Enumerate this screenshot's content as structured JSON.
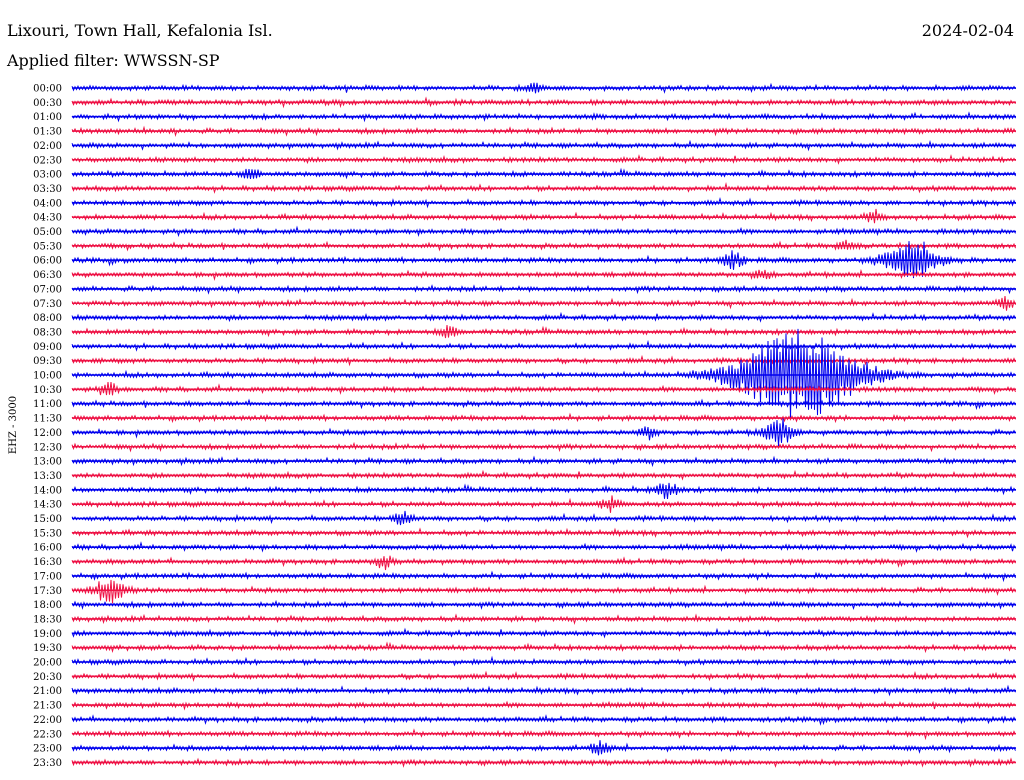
{
  "header": {
    "station": "Lixouri, Town Hall, Kefalonia Isl.",
    "date": "2024-02-04",
    "filter": "Applied filter: WWSSN-SP"
  },
  "chart_data": {
    "type": "line",
    "title": "Lixouri, Town Hall, Kefalonia Isl.",
    "subtitle": "Applied filter: WWSSN-SP",
    "ylabel": "EHZ - 3000",
    "row_labels": [
      "00:00",
      "00:30",
      "01:00",
      "01:30",
      "02:00",
      "02:30",
      "03:00",
      "03:30",
      "04:00",
      "04:30",
      "05:00",
      "05:30",
      "06:00",
      "06:30",
      "07:00",
      "07:30",
      "08:00",
      "08:30",
      "09:00",
      "09:30",
      "10:00",
      "10:30",
      "11:00",
      "11:30",
      "12:00",
      "12:30",
      "13:00",
      "13:30",
      "14:00",
      "14:30",
      "15:00",
      "15:30",
      "16:00",
      "16:30",
      "17:00",
      "17:30",
      "18:00",
      "18:30",
      "19:00",
      "19:30",
      "20:00",
      "20:30",
      "21:00",
      "21:30",
      "22:00",
      "22:30",
      "23:00",
      "23:30"
    ],
    "colors": [
      "#0000ee",
      "#ee1144"
    ],
    "grid": false,
    "legend": "none",
    "events": [
      {
        "row": 0,
        "pos": 0.49,
        "amp": 4
      },
      {
        "row": 6,
        "pos": 0.19,
        "amp": 6
      },
      {
        "row": 9,
        "pos": 0.85,
        "amp": 6
      },
      {
        "row": 11,
        "pos": 0.82,
        "amp": 5
      },
      {
        "row": 12,
        "pos": 0.7,
        "amp": 8
      },
      {
        "row": 12,
        "pos": 0.89,
        "amp": 20
      },
      {
        "row": 13,
        "pos": 0.73,
        "amp": 5
      },
      {
        "row": 15,
        "pos": 0.99,
        "amp": 6
      },
      {
        "row": 17,
        "pos": 0.4,
        "amp": 6
      },
      {
        "row": 20,
        "pos": 0.77,
        "amp": 45
      },
      {
        "row": 21,
        "pos": 0.04,
        "amp": 6
      },
      {
        "row": 24,
        "pos": 0.75,
        "amp": 12
      },
      {
        "row": 24,
        "pos": 0.61,
        "amp": 6
      },
      {
        "row": 28,
        "pos": 0.63,
        "amp": 8
      },
      {
        "row": 29,
        "pos": 0.57,
        "amp": 7
      },
      {
        "row": 30,
        "pos": 0.35,
        "amp": 7
      },
      {
        "row": 33,
        "pos": 0.33,
        "amp": 6
      },
      {
        "row": 35,
        "pos": 0.04,
        "amp": 12
      },
      {
        "row": 46,
        "pos": 0.56,
        "amp": 6
      }
    ]
  }
}
